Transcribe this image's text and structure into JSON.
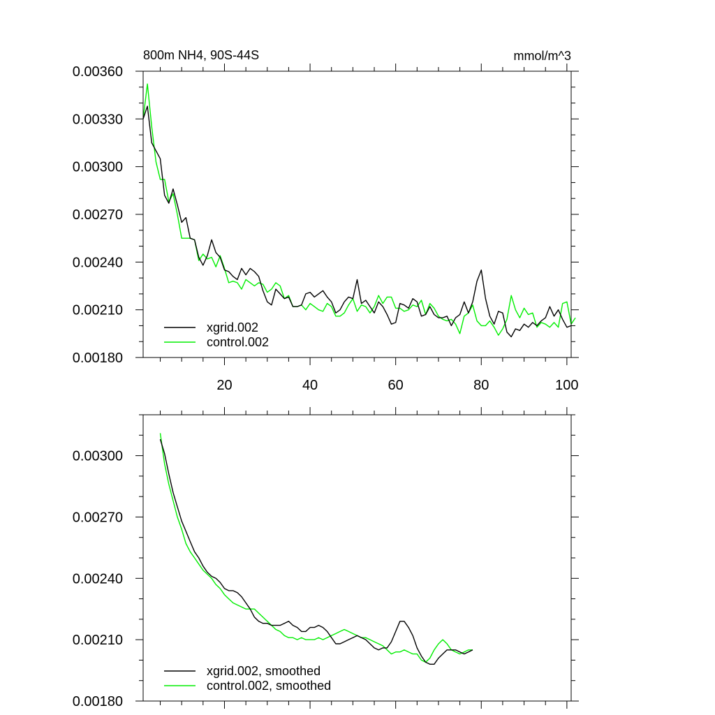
{
  "colors": {
    "xgrid": "#000000",
    "control": "#00ee00"
  },
  "chart_data": [
    {
      "type": "line",
      "title": "800m NH4, 90S-44S",
      "units": "mmol/m^3",
      "xlim": [
        1,
        101
      ],
      "ylim": [
        0.0018,
        0.0036
      ],
      "xticks": [
        20,
        40,
        60,
        80,
        100
      ],
      "yticks": [
        "0.00180",
        "0.00210",
        "0.00240",
        "0.00270",
        "0.00300",
        "0.00330",
        "0.00360"
      ],
      "legend_position": "bottom-left",
      "series": [
        {
          "name": "xgrid.002",
          "color_key": "xgrid",
          "x_start": 1,
          "values": [
            0.0033,
            0.00338,
            0.00315,
            0.0031,
            0.00305,
            0.00282,
            0.00277,
            0.00286,
            0.00276,
            0.00265,
            0.00268,
            0.00255,
            0.00254,
            0.00243,
            0.00238,
            0.00244,
            0.00254,
            0.00246,
            0.00243,
            0.00235,
            0.00234,
            0.00231,
            0.00229,
            0.00236,
            0.00232,
            0.00236,
            0.00234,
            0.00231,
            0.00222,
            0.00215,
            0.00213,
            0.00223,
            0.0022,
            0.00217,
            0.00218,
            0.00212,
            0.00212,
            0.00213,
            0.0022,
            0.00221,
            0.00218,
            0.0022,
            0.00222,
            0.00218,
            0.00215,
            0.00208,
            0.0021,
            0.00215,
            0.00218,
            0.00217,
            0.00229,
            0.00214,
            0.00216,
            0.00212,
            0.00208,
            0.00215,
            0.00212,
            0.00207,
            0.00201,
            0.00202,
            0.00214,
            0.00213,
            0.00211,
            0.00217,
            0.00215,
            0.00206,
            0.00207,
            0.00212,
            0.00207,
            0.00205,
            0.00205,
            0.00206,
            0.002,
            0.00205,
            0.00207,
            0.00215,
            0.00208,
            0.00215,
            0.00228,
            0.00235,
            0.00217,
            0.00206,
            0.00201,
            0.00209,
            0.00208,
            0.00196,
            0.00193,
            0.00198,
            0.00197,
            0.00201,
            0.00199,
            0.00202,
            0.002,
            0.00203,
            0.00205,
            0.00212,
            0.00206,
            0.0021,
            0.00204,
            0.00199,
            0.002
          ]
        },
        {
          "name": "control.002",
          "color_key": "control",
          "x_start": 1,
          "values": [
            0.0033,
            0.00352,
            0.00325,
            0.00303,
            0.00292,
            0.00292,
            0.00278,
            0.00283,
            0.0027,
            0.00255,
            0.00255,
            0.00255,
            0.00254,
            0.00241,
            0.00245,
            0.00242,
            0.00243,
            0.00237,
            0.00244,
            0.00236,
            0.00227,
            0.00228,
            0.00227,
            0.00223,
            0.00229,
            0.00227,
            0.00225,
            0.00227,
            0.00226,
            0.00221,
            0.00223,
            0.00227,
            0.00225,
            0.00217,
            0.00219,
            0.00212,
            0.00212,
            0.00213,
            0.0021,
            0.00214,
            0.00212,
            0.0021,
            0.00209,
            0.00214,
            0.00212,
            0.00206,
            0.00206,
            0.00208,
            0.00213,
            0.00217,
            0.00209,
            0.00213,
            0.00212,
            0.00208,
            0.00212,
            0.00219,
            0.00214,
            0.00218,
            0.00218,
            0.00211,
            0.00211,
            0.00209,
            0.0021,
            0.00213,
            0.00212,
            0.00216,
            0.00207,
            0.00214,
            0.00211,
            0.00206,
            0.00204,
            0.00203,
            0.00204,
            0.00201,
            0.00195,
            0.00206,
            0.00208,
            0.00213,
            0.00203,
            0.002,
            0.002,
            0.00203,
            0.00199,
            0.00194,
            0.00198,
            0.00204,
            0.00219,
            0.0021,
            0.00205,
            0.00211,
            0.00207,
            0.00208,
            0.00199,
            0.00202,
            0.00201,
            0.00199,
            0.00202,
            0.00199,
            0.00214,
            0.00215,
            0.00201,
            0.00205
          ]
        }
      ]
    },
    {
      "type": "line",
      "title": "",
      "xlim": [
        1,
        101
      ],
      "ylim": [
        0.0018,
        0.0032
      ],
      "yticks": [
        "0.00180",
        "0.00210",
        "0.00240",
        "0.00270",
        "0.00300"
      ],
      "legend_position": "bottom-left",
      "series": [
        {
          "name": "xgrid.002, smoothed",
          "color_key": "xgrid",
          "x_start": 5,
          "values": [
            0.00308,
            0.00301,
            0.00291,
            0.00282,
            0.00275,
            0.00268,
            0.00263,
            0.00258,
            0.00253,
            0.0025,
            0.00246,
            0.00243,
            0.00241,
            0.0024,
            0.00238,
            0.00235,
            0.00234,
            0.00234,
            0.00233,
            0.00231,
            0.00228,
            0.00225,
            0.00221,
            0.00219,
            0.00218,
            0.00218,
            0.00217,
            0.00217,
            0.00217,
            0.00218,
            0.00219,
            0.00217,
            0.00216,
            0.00214,
            0.00214,
            0.00216,
            0.00216,
            0.00217,
            0.00216,
            0.00214,
            0.00211,
            0.00208,
            0.00208,
            0.00209,
            0.0021,
            0.00211,
            0.00212,
            0.00211,
            0.0021,
            0.00208,
            0.00206,
            0.00205,
            0.00206,
            0.00206,
            0.00209,
            0.00214,
            0.00219,
            0.00219,
            0.00216,
            0.00212,
            0.00206,
            0.00202,
            0.00199,
            0.00198,
            0.00198,
            0.00201,
            0.00203,
            0.00205,
            0.00205,
            0.00205,
            0.00204,
            0.00203,
            0.00204,
            0.00205
          ]
        },
        {
          "name": "control.002, smoothed",
          "color_key": "control",
          "x_start": 5,
          "values": [
            0.00311,
            0.00296,
            0.00286,
            0.00278,
            0.0027,
            0.00264,
            0.00257,
            0.00253,
            0.0025,
            0.00247,
            0.00244,
            0.00242,
            0.0024,
            0.00237,
            0.00235,
            0.00232,
            0.0023,
            0.00228,
            0.00227,
            0.00226,
            0.00225,
            0.00225,
            0.00225,
            0.00223,
            0.00221,
            0.00219,
            0.00217,
            0.00215,
            0.00214,
            0.00212,
            0.00211,
            0.00211,
            0.0021,
            0.00211,
            0.0021,
            0.0021,
            0.0021,
            0.00211,
            0.0021,
            0.00211,
            0.00212,
            0.00213,
            0.00214,
            0.00215,
            0.00214,
            0.00213,
            0.00212,
            0.00211,
            0.00211,
            0.0021,
            0.00209,
            0.00208,
            0.00207,
            0.00205,
            0.00203,
            0.00204,
            0.00204,
            0.00205,
            0.00204,
            0.00203,
            0.00203,
            0.002,
            0.00199,
            0.00201,
            0.00205,
            0.00208,
            0.0021,
            0.00208,
            0.00205,
            0.00204,
            0.00203,
            0.00204,
            0.00205,
            0.00205
          ]
        }
      ]
    }
  ]
}
